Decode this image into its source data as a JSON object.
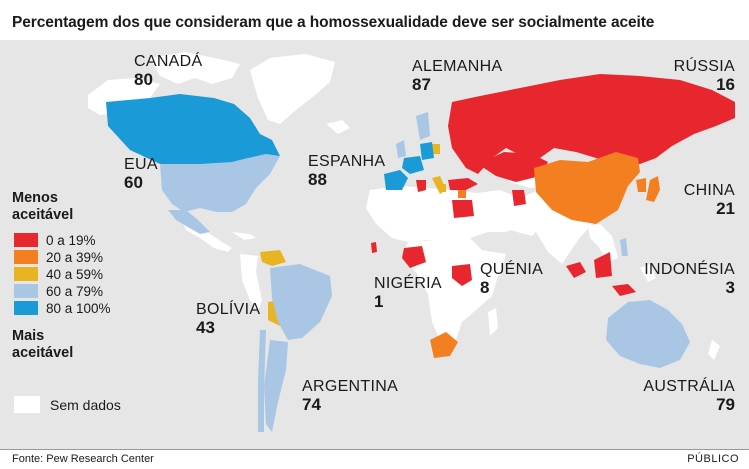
{
  "title": "Percentagem dos que consideram que a homossexualidade deve ser socialmente aceite",
  "legend": {
    "top_label": "Menos aceitável",
    "bottom_label": "Mais aceitável",
    "classes": [
      {
        "label": "0 a 19%",
        "color": "#e8262e"
      },
      {
        "label": "20 a 39%",
        "color": "#f47f20"
      },
      {
        "label": "40 a 59%",
        "color": "#e8b422"
      },
      {
        "label": "60 a 79%",
        "color": "#a9c6e5"
      },
      {
        "label": "80 a 100%",
        "color": "#1a9ad7"
      }
    ],
    "no_data_label": "Sem dados",
    "no_data_color": "#ffffff"
  },
  "countries": {
    "canada": {
      "name": "CANADÁ",
      "value": "80"
    },
    "usa": {
      "name": "EUA",
      "value": "60"
    },
    "spain": {
      "name": "ESPANHA",
      "value": "88"
    },
    "germany": {
      "name": "ALEMANHA",
      "value": "87"
    },
    "russia": {
      "name": "RÚSSIA",
      "value": "16"
    },
    "china": {
      "name": "CHINA",
      "value": "21"
    },
    "nigeria": {
      "name": "NIGÉRIA",
      "value": "1"
    },
    "kenya": {
      "name": "QUÉNIA",
      "value": "8"
    },
    "indonesia": {
      "name": "INDONÉSIA",
      "value": "3"
    },
    "bolivia": {
      "name": "BOLÍVIA",
      "value": "43"
    },
    "argentina": {
      "name": "ARGENTINA",
      "value": "74"
    },
    "australia": {
      "name": "AUSTRÁLIA",
      "value": "79"
    }
  },
  "source": "Fonte: Pew Research Center",
  "brand": "PÚBLICO"
}
